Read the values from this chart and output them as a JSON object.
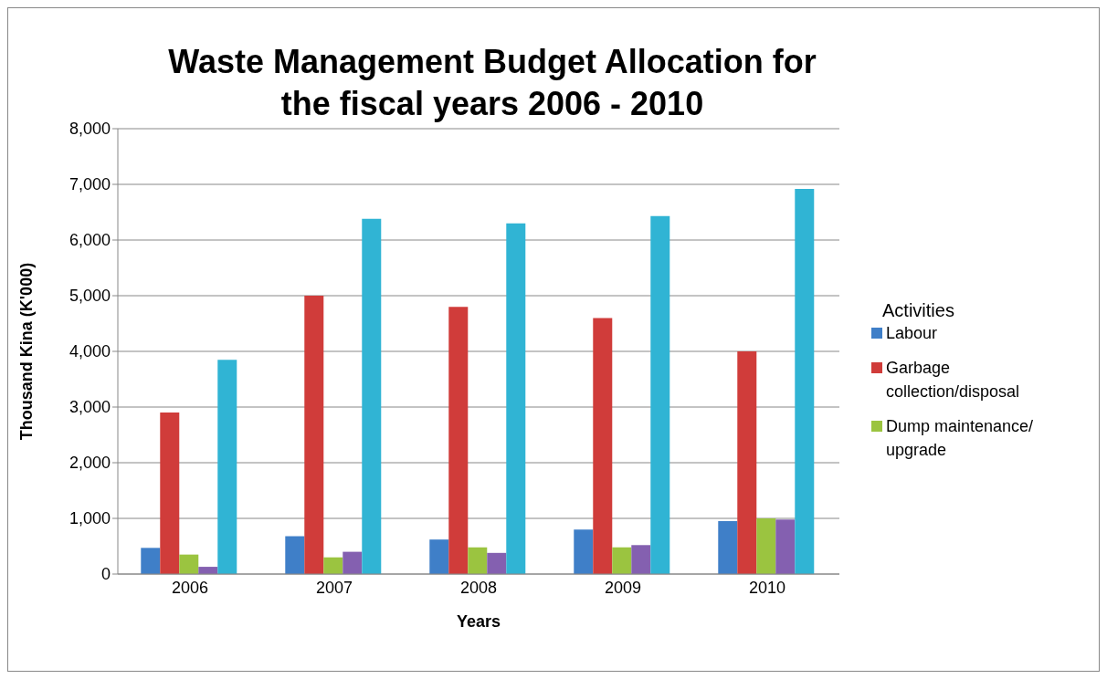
{
  "chart_data": {
    "type": "bar",
    "title": "Waste Management Budget Allocation for the fiscal years 2006 - 2010",
    "xlabel": "Years",
    "ylabel": "Thousand Kina (K'000)",
    "legend_title": "Activities",
    "categories": [
      "2006",
      "2007",
      "2008",
      "2009",
      "2010"
    ],
    "series": [
      {
        "name": "Labour",
        "color": "#3f7fc8",
        "values": [
          470,
          680,
          620,
          800,
          950
        ]
      },
      {
        "name": "Garbage collection/disposal",
        "color": "#d03c3a",
        "values": [
          2900,
          5000,
          4800,
          4600,
          4000
        ]
      },
      {
        "name": "Dump maintenance/ upgrade",
        "color": "#9bc440",
        "values": [
          350,
          300,
          480,
          480,
          1000
        ]
      },
      {
        "color": "#8460b0",
        "values": [
          130,
          400,
          380,
          520,
          980
        ]
      },
      {
        "color": "#30b4d4",
        "values": [
          3850,
          6380,
          6300,
          6430,
          6920
        ]
      }
    ],
    "ylim": [
      0,
      8000
    ],
    "yticks": [
      0,
      {
        "value": 1000,
        "label": "1,000"
      },
      {
        "value": 2000,
        "label": "2,000"
      },
      {
        "value": 3000,
        "label": "3,000"
      },
      {
        "value": 4000,
        "label": "4,000"
      },
      {
        "value": 5000,
        "label": "5,000"
      },
      {
        "value": 6000,
        "label": "6,000"
      },
      {
        "value": 7000,
        "label": "7,000"
      },
      {
        "value": 8000,
        "label": "8,000"
      }
    ],
    "grid": "y",
    "legend": "right"
  }
}
